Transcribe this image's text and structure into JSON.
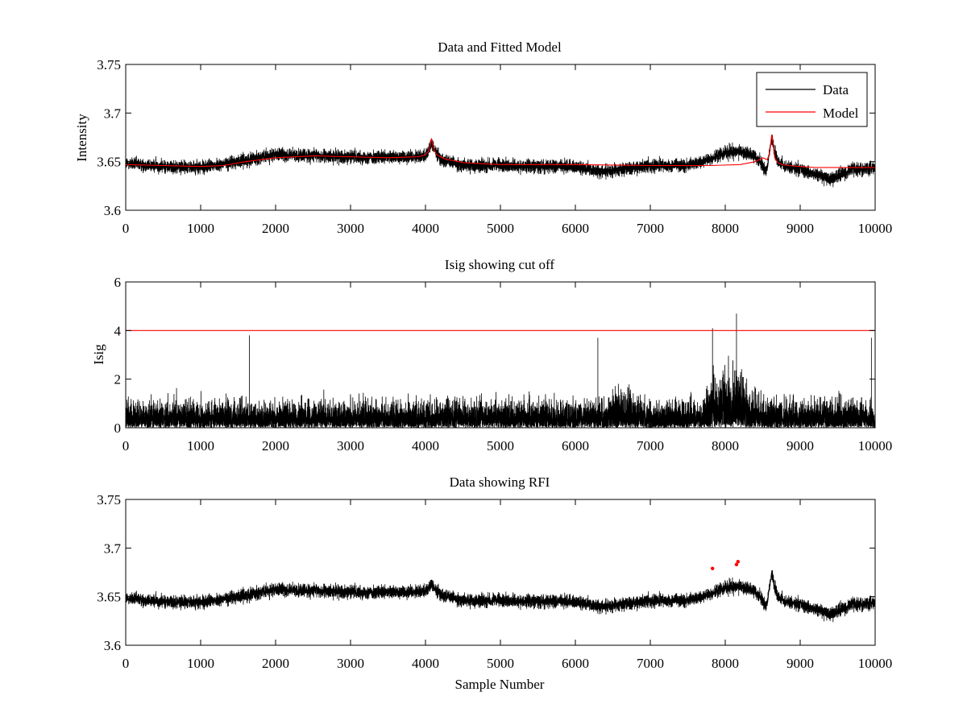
{
  "chart_data": [
    {
      "type": "line",
      "title": "Data and Fitted Model",
      "xlabel": "",
      "ylabel": "Intensity",
      "xlim": [
        0,
        10000
      ],
      "ylim": [
        3.6,
        3.75
      ],
      "xticks": [
        0,
        1000,
        2000,
        3000,
        4000,
        5000,
        6000,
        7000,
        8000,
        9000,
        10000
      ],
      "yticks": [
        3.6,
        3.65,
        3.7,
        3.75
      ],
      "yticklabels": [
        "3.6",
        "3.65",
        "3.7",
        "3.75"
      ],
      "legend": {
        "location": "top-right",
        "entries": [
          "Data",
          "Model"
        ]
      },
      "series": [
        {
          "name": "Data",
          "color": "#000000",
          "kind": "noise",
          "n_samples": 10000,
          "baseline_x": [
            0,
            500,
            1000,
            1500,
            2000,
            2500,
            3000,
            3500,
            4000,
            4080,
            4200,
            4500,
            5000,
            5500,
            6000,
            6300,
            6500,
            7000,
            7500,
            7800,
            8000,
            8200,
            8400,
            8550,
            8620,
            8650,
            8700,
            8800,
            9000,
            9400,
            9700,
            10000
          ],
          "baseline_y": [
            3.648,
            3.645,
            3.644,
            3.65,
            3.657,
            3.656,
            3.655,
            3.654,
            3.656,
            3.668,
            3.652,
            3.646,
            3.646,
            3.645,
            3.645,
            3.64,
            3.641,
            3.646,
            3.646,
            3.652,
            3.66,
            3.66,
            3.656,
            3.64,
            3.675,
            3.662,
            3.65,
            3.645,
            3.642,
            3.632,
            3.642,
            3.643
          ],
          "noise_amplitude": 0.0085
        },
        {
          "name": "Model",
          "color": "#ff0000",
          "x": [
            0,
            500,
            1000,
            1300,
            1600,
            2000,
            2500,
            3000,
            3500,
            3900,
            4000,
            4050,
            4080,
            4110,
            4150,
            4250,
            4500,
            5000,
            6000,
            7000,
            7800,
            8200,
            8400,
            8500,
            8560,
            8590,
            8620,
            8640,
            8660,
            8700,
            8760,
            8850,
            9000,
            9200,
            10000
          ],
          "y": [
            3.647,
            3.646,
            3.645,
            3.646,
            3.65,
            3.654,
            3.656,
            3.655,
            3.654,
            3.655,
            3.657,
            3.662,
            3.674,
            3.663,
            3.657,
            3.653,
            3.649,
            3.647,
            3.647,
            3.646,
            3.646,
            3.647,
            3.65,
            3.654,
            3.652,
            3.658,
            3.678,
            3.668,
            3.654,
            3.649,
            3.647,
            3.646,
            3.645,
            3.644,
            3.644
          ]
        }
      ]
    },
    {
      "type": "line",
      "title": "Isig showing cut off",
      "xlabel": "",
      "ylabel": "Isig",
      "xlim": [
        0,
        10000
      ],
      "ylim": [
        0,
        6
      ],
      "xticks": [
        0,
        1000,
        2000,
        3000,
        4000,
        5000,
        6000,
        7000,
        8000,
        9000,
        10000
      ],
      "yticks": [
        0,
        2,
        4,
        6
      ],
      "yticklabels": [
        "0",
        "2",
        "4",
        "6"
      ],
      "series": [
        {
          "name": "Isig",
          "color": "#000000",
          "kind": "abs-noise",
          "n_samples": 10000,
          "scale_x": [
            0,
            6400,
            6500,
            6700,
            7000,
            7700,
            7800,
            8150,
            8300,
            8500,
            10000
          ],
          "scale_y": [
            0.72,
            0.72,
            1.0,
            1.0,
            0.72,
            0.72,
            1.3,
            1.6,
            1.1,
            0.75,
            0.72
          ],
          "spikes_x": [
            1650,
            6300,
            7830,
            8150,
            9950
          ],
          "spikes_y": [
            3.8,
            3.7,
            4.1,
            4.7,
            3.7
          ]
        },
        {
          "name": "Cut off",
          "color": "#ff0000",
          "x": [
            0,
            10000
          ],
          "y": [
            4,
            4
          ]
        }
      ]
    },
    {
      "type": "line",
      "title": "Data showing RFI",
      "xlabel": "Sample Number",
      "ylabel": "",
      "xlim": [
        0,
        10000
      ],
      "ylim": [
        3.6,
        3.75
      ],
      "xticks": [
        0,
        1000,
        2000,
        3000,
        4000,
        5000,
        6000,
        7000,
        8000,
        9000,
        10000
      ],
      "yticks": [
        3.6,
        3.65,
        3.7,
        3.75
      ],
      "yticklabels": [
        "3.6",
        "3.65",
        "3.7",
        "3.75"
      ],
      "series": [
        {
          "name": "Data",
          "color": "#000000",
          "kind": "noise",
          "n_samples": 10000,
          "baseline_x": [
            0,
            500,
            1000,
            1500,
            2000,
            2500,
            3000,
            3500,
            4000,
            4080,
            4200,
            4500,
            5000,
            5500,
            6000,
            6300,
            6500,
            7000,
            7500,
            7800,
            8000,
            8200,
            8400,
            8550,
            8620,
            8650,
            8700,
            8800,
            9000,
            9400,
            9700,
            10000
          ],
          "baseline_y": [
            3.648,
            3.645,
            3.644,
            3.65,
            3.657,
            3.656,
            3.655,
            3.654,
            3.656,
            3.662,
            3.652,
            3.646,
            3.646,
            3.645,
            3.645,
            3.64,
            3.641,
            3.646,
            3.646,
            3.652,
            3.66,
            3.66,
            3.656,
            3.64,
            3.675,
            3.662,
            3.65,
            3.645,
            3.642,
            3.632,
            3.642,
            3.643
          ],
          "noise_amplitude": 0.0085
        },
        {
          "name": "RFI",
          "color": "#ff0000",
          "kind": "markers",
          "x": [
            7830,
            8150,
            8170
          ],
          "y": [
            3.679,
            3.683,
            3.686
          ]
        }
      ]
    }
  ]
}
